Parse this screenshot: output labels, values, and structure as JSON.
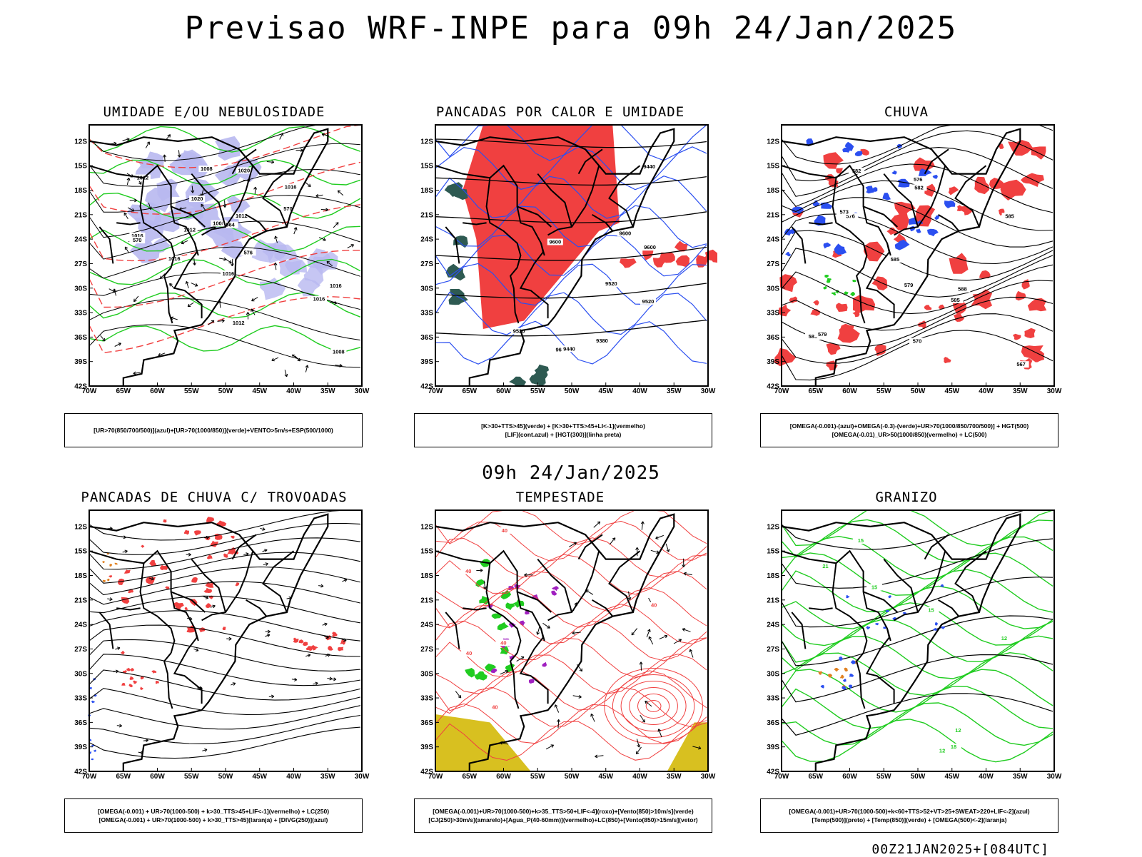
{
  "title": "Previsao WRF-INPE  para 09h 24/Jan/2025",
  "mid_date": "09h 24/Jan/2025",
  "footer": "00Z21JAN2025+[084UTC]",
  "chart_data": [
    {
      "type": "map",
      "title": "UMIDADE E/OU NEBULOSIDADE",
      "legend": [
        "[UR>70(850/700/500)](azul)+[UR>70(1000/850)](verde)+VENTO>5m/s+ESP(500/1000)"
      ],
      "lat_ticks": [
        "12S",
        "15S",
        "18S",
        "21S",
        "24S",
        "27S",
        "30S",
        "33S",
        "36S",
        "39S",
        "42S"
      ],
      "lon_ticks": [
        "70W",
        "65W",
        "60W",
        "55W",
        "50W",
        "45W",
        "40W",
        "35W",
        "30W"
      ],
      "contour_labels": [
        "1012",
        "1012",
        "1016",
        "1016",
        "1016",
        "1016",
        "1008",
        "1008",
        "1016",
        "1020",
        "1020",
        "1012",
        "1012",
        "1008",
        "1016",
        "570",
        "576",
        "570",
        "564"
      ]
    },
    {
      "type": "map",
      "title": "PANCADAS POR CALOR E UMIDADE",
      "legend": [
        "[K>30+TTS>45](verde) + [K>30+TTS>45+LI<-1](vermelho)",
        "[LIF](cont.azul) + [HGT(300)](linha preta)"
      ],
      "lat_ticks": [
        "12S",
        "15S",
        "18S",
        "21S",
        "24S",
        "27S",
        "30S",
        "33S",
        "36S",
        "39S",
        "42S"
      ],
      "lon_ticks": [
        "70W",
        "65W",
        "60W",
        "55W",
        "50W",
        "45W",
        "40W",
        "35W",
        "30W"
      ],
      "contour_labels": [
        "9600",
        "9520",
        "9600",
        "9600",
        "9600",
        "9520",
        "9440",
        "9380",
        "9520",
        "9440"
      ]
    },
    {
      "type": "map",
      "title": "CHUVA",
      "legend": [
        "[OMEGA(-0.001)-(azul)+OMEGA(-0.3)-(verde)+UR>70(1000/850/700/500)] + HGT(500)",
        "[OMEGA(-0.01)_UR>50(1000/850)(vermelho) + LC(500)"
      ],
      "lat_ticks": [
        "12S",
        "15S",
        "18S",
        "21S",
        "24S",
        "27S",
        "30S",
        "33S",
        "36S",
        "39S",
        "42S"
      ],
      "lon_ticks": [
        "70W",
        "65W",
        "60W",
        "55W",
        "50W",
        "45W",
        "40W",
        "35W",
        "30W"
      ],
      "contour_labels": [
        "588",
        "588",
        "585",
        "585",
        "582",
        "579",
        "576",
        "573",
        "570",
        "567",
        "585",
        "582",
        "579",
        "576"
      ]
    },
    {
      "type": "map",
      "title": "PANCADAS DE CHUVA C/ TROVOADAS",
      "legend": [
        "[OMEGA(-0.001) + UR>70(1000-500) + k>30_TTS>45+LIF<-1](vermelho) + LC(250)",
        "[OMEGA(-0.001) + UR>70(1000-500) + k>30_TTS>45](laranja) + [DIVG(250)](azul)"
      ],
      "lat_ticks": [
        "12S",
        "15S",
        "18S",
        "21S",
        "24S",
        "27S",
        "30S",
        "33S",
        "36S",
        "39S",
        "42S"
      ],
      "lon_ticks": [
        "70W",
        "65W",
        "60W",
        "55W",
        "50W",
        "45W",
        "40W",
        "35W",
        "30W"
      ],
      "contour_labels": []
    },
    {
      "type": "map",
      "title": "TEMPESTADE",
      "legend": [
        "[OMEGA(-0.001)+UR>70(1000-500)+k>35_TTS>50+LIF<-4](roxo)+[Vento(850)>10m/s](verde)",
        "[CJ(250)>30m/s](amarelo)+[Agua_P(40-60mm)](vermelho)+LC(850)+[Vento(850)>15m/s](vetor)"
      ],
      "lat_ticks": [
        "12S",
        "15S",
        "18S",
        "21S",
        "24S",
        "27S",
        "30S",
        "33S",
        "36S",
        "39S",
        "42S"
      ],
      "lon_ticks": [
        "70W",
        "65W",
        "60W",
        "55W",
        "50W",
        "45W",
        "40W",
        "35W",
        "30W"
      ],
      "contour_labels": [
        "40",
        "40",
        "40",
        "40",
        "40",
        "40"
      ]
    },
    {
      "type": "map",
      "title": "GRANIZO",
      "legend": [
        "[OMEGA(-0.001)+UR>70(1000-500)+k<60+TTS>52+VT>25+SWEAT>220+LIF<-2](azul)",
        "[Temp(500)](preto) + [Temp(850)](verde) + [OMEGA(500)<-2](laranja)"
      ],
      "lat_ticks": [
        "12S",
        "15S",
        "18S",
        "21S",
        "24S",
        "27S",
        "30S",
        "33S",
        "36S",
        "39S",
        "42S"
      ],
      "lon_ticks": [
        "70W",
        "65W",
        "60W",
        "55W",
        "50W",
        "45W",
        "40W",
        "35W",
        "30W"
      ],
      "contour_labels": [
        "12",
        "12",
        "15",
        "15",
        "18",
        "21",
        "12",
        "15"
      ]
    }
  ],
  "colors": {
    "red": "#f04040",
    "blue": "#2b4ff0",
    "green": "#20cc20",
    "lightblue": "#b8b8f0",
    "darkgreen": "#2e5a52",
    "yellow": "#d8c020",
    "purple": "#a020c0",
    "orange": "#e08020"
  }
}
